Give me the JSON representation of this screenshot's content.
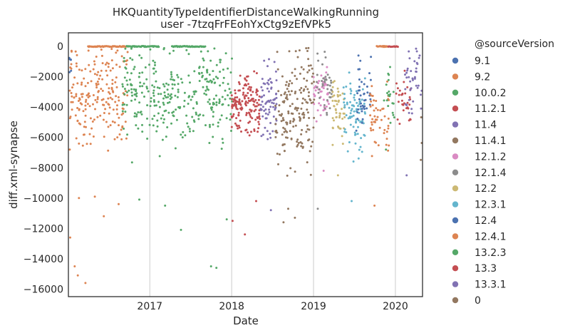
{
  "chart_data": {
    "type": "scatter",
    "title": "HKQuantityTypeIdentifierDistanceWalkingRunning",
    "subtitle": "user -7tzqFrFEohYxCtg9zEfVPk5",
    "xlabel": "Date",
    "ylabel": "diff.xml-synapse",
    "xlim": [
      "2016-01-04",
      "2020-05-01"
    ],
    "ylim": [
      -16500,
      900
    ],
    "x_ticks": [
      "2017-01-01",
      "2018-01-01",
      "2019-01-01",
      "2020-01-01"
    ],
    "x_tick_labels": [
      "2017",
      "2018",
      "2019",
      "2020"
    ],
    "y_ticks": [
      0,
      -2000,
      -4000,
      -6000,
      -8000,
      -10000,
      -12000,
      -14000,
      -16000
    ],
    "y_tick_labels": [
      "0",
      "−2000",
      "−4000",
      "−6000",
      "−8000",
      "−10000",
      "−12000",
      "−14000",
      "−16000"
    ],
    "grid": "vertical",
    "legend_position": "outside-right",
    "legend_title": "@sourceVersion",
    "series": [
      {
        "name": "9.1",
        "color": "#4c72b0",
        "x_range": [
          "2016-01-04",
          "2016-01-20"
        ],
        "center": -1500,
        "spread": 600,
        "n": 6,
        "points": [
          [
            "2016-01-06",
            -800
          ],
          [
            "2016-01-09",
            -1700
          ]
        ]
      },
      {
        "name": "9.2",
        "color": "#dd8452",
        "x_range": [
          "2016-01-10",
          "2016-09-25"
        ],
        "center": -3300,
        "spread": 1600,
        "n": 200,
        "points": [
          [
            "2016-01-12",
            -12600
          ],
          [
            "2016-02-01",
            -14500
          ],
          [
            "2016-02-15",
            -15100
          ],
          [
            "2016-03-20",
            -15600
          ],
          [
            "2016-06-10",
            -11200
          ],
          [
            "2016-02-20",
            -10000
          ],
          [
            "2016-05-01",
            -9900
          ],
          [
            "2016-08-15",
            -10400
          ]
        ]
      },
      {
        "name": "10.0.2",
        "color": "#55a868",
        "x_range": [
          "2016-09-01",
          "2018-01-05"
        ],
        "center": -3300,
        "spread": 1500,
        "n": 320,
        "points": [
          [
            "2017-05-20",
            -12100
          ],
          [
            "2017-10-01",
            -14500
          ],
          [
            "2017-10-25",
            -14600
          ],
          [
            "2017-03-10",
            -10500
          ],
          [
            "2016-11-15",
            -10100
          ],
          [
            "2017-12-10",
            -11400
          ]
        ]
      },
      {
        "name": "11.2.1",
        "color": "#c44e52",
        "x_range": [
          "2018-01-01",
          "2018-05-10"
        ],
        "center": -3900,
        "spread": 1000,
        "n": 150,
        "points": [
          [
            "2018-03-01",
            -12400
          ],
          [
            "2018-01-05",
            -11500
          ],
          [
            "2018-04-20",
            -10200
          ]
        ]
      },
      {
        "name": "11.4",
        "color": "#8172b3",
        "x_range": [
          "2018-05-10",
          "2018-07-20"
        ],
        "center": -3800,
        "spread": 1300,
        "n": 70,
        "points": [
          [
            "2018-06-10",
            -1300
          ],
          [
            "2018-06-25",
            -10800
          ]
        ]
      },
      {
        "name": "11.4.1",
        "color": "#937860",
        "x_range": [
          "2018-07-15",
          "2019-01-10"
        ],
        "center": -4000,
        "spread": 1800,
        "n": 170,
        "points": [
          [
            "2018-08-20",
            -11600
          ],
          [
            "2018-09-10",
            -10700
          ],
          [
            "2018-10-10",
            -11300
          ],
          [
            "2018-12-05",
            -300
          ]
        ]
      },
      {
        "name": "12.1.2",
        "color": "#da8bc3",
        "x_range": [
          "2019-01-01",
          "2019-03-10"
        ],
        "center": -3000,
        "spread": 1000,
        "n": 45,
        "points": [
          [
            "2019-02-15",
            -8200
          ]
        ]
      },
      {
        "name": "12.1.4",
        "color": "#8c8c8c",
        "x_range": [
          "2019-01-15",
          "2019-03-25"
        ],
        "center": -2600,
        "spread": 1000,
        "n": 40,
        "points": [
          [
            "2019-01-20",
            -10700
          ]
        ]
      },
      {
        "name": "12.2",
        "color": "#ccb974",
        "x_range": [
          "2019-03-25",
          "2019-05-20"
        ],
        "center": -4200,
        "spread": 900,
        "n": 50,
        "points": [
          [
            "2019-04-20",
            -8500
          ]
        ]
      },
      {
        "name": "12.3.1",
        "color": "#64b5cd",
        "x_range": [
          "2019-05-15",
          "2019-08-20"
        ],
        "center": -4300,
        "spread": 1300,
        "n": 80,
        "points": [
          [
            "2019-06-20",
            -10200
          ]
        ]
      },
      {
        "name": "12.4",
        "color": "#4c72b0",
        "x_range": [
          "2019-07-10",
          "2019-09-15"
        ],
        "center": -3600,
        "spread": 1100,
        "n": 40,
        "points": [
          [
            "2019-07-25",
            -1500
          ]
        ]
      },
      {
        "name": "12.4.1",
        "color": "#dd8452",
        "x_range": [
          "2019-09-10",
          "2019-12-05"
        ],
        "center": -4600,
        "spread": 1100,
        "n": 50,
        "points": [
          [
            "2019-09-30",
            -10500
          ]
        ]
      },
      {
        "name": "13.2.3",
        "color": "#55a868",
        "x_range": [
          "2019-11-10",
          "2019-12-28"
        ],
        "center": -3800,
        "spread": 1200,
        "n": 20,
        "points": [
          [
            "2019-11-20",
            -6800
          ]
        ]
      },
      {
        "name": "13.3",
        "color": "#c44e52",
        "x_range": [
          "2020-01-01",
          "2020-03-10"
        ],
        "center": -3200,
        "spread": 900,
        "n": 30,
        "points": [
          [
            "2020-01-20",
            -5100
          ]
        ]
      },
      {
        "name": "13.3.1",
        "color": "#8172b3",
        "x_range": [
          "2020-02-10",
          "2020-05-01"
        ],
        "center": -1900,
        "spread": 1200,
        "n": 45,
        "points": [
          [
            "2020-02-20",
            -8500
          ]
        ]
      },
      {
        "name": "0",
        "color": "#937860",
        "x_range": [
          "2020-04-20",
          "2020-05-01"
        ],
        "center": -4500,
        "spread": 1500,
        "n": 4,
        "points": [
          [
            "2020-04-28",
            -7800
          ]
        ]
      }
    ],
    "zero_clusters": [
      {
        "series": "9.2",
        "x_range": [
          "2016-04-01",
          "2016-09-20"
        ],
        "y": 0
      },
      {
        "series": "10.0.2",
        "x_range": [
          "2016-09-20",
          "2017-02-10"
        ],
        "y": 0
      },
      {
        "series": "10.0.2",
        "x_range": [
          "2017-04-10",
          "2017-09-05"
        ],
        "y": 0
      },
      {
        "series": "12.4.1",
        "x_range": [
          "2019-10-10",
          "2019-11-30"
        ],
        "y": 0
      },
      {
        "series": "13.3",
        "x_range": [
          "2019-12-01",
          "2020-01-12"
        ],
        "y": 0
      }
    ]
  }
}
